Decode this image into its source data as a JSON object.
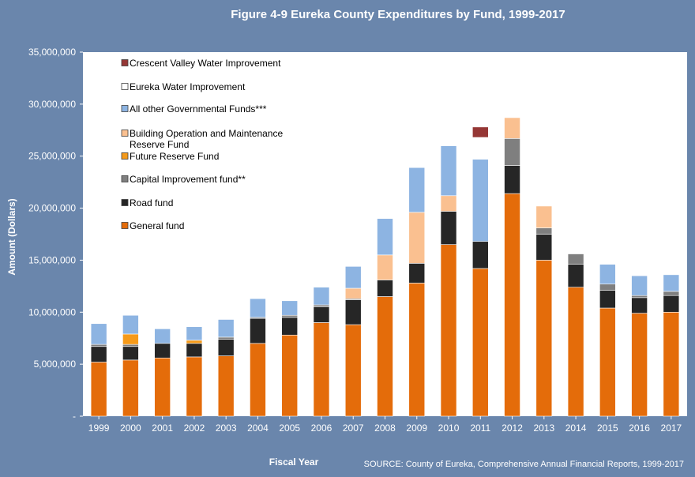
{
  "chart_data": {
    "type": "bar",
    "stacked": true,
    "title": "Figure 4-9 Eureka County Expenditures by Fund, 1999-2017",
    "xlabel": "Fiscal Year",
    "ylabel": "Amount (Dollars)",
    "source": "SOURCE: County of Eureka, Comprehensive Annual Financial Reports, 1999-2017",
    "ylim": [
      0,
      35000000
    ],
    "yticks": [
      "-",
      "5,000,000",
      "10,000,000",
      "15,000,000",
      "20,000,000",
      "25,000,000",
      "30,000,000",
      "35,000,000"
    ],
    "grid": false,
    "legend_position": "top-left",
    "categories": [
      "1999",
      "2000",
      "2001",
      "2002",
      "2003",
      "2004",
      "2005",
      "2006",
      "2007",
      "2008",
      "2009",
      "2010",
      "2011",
      "2012",
      "2013",
      "2014",
      "2015",
      "2016",
      "2017"
    ],
    "series": [
      {
        "name": "General fund",
        "color": "#e46c0a",
        "values": [
          5200000,
          5400000,
          5600000,
          5700000,
          5800000,
          7000000,
          7800000,
          9000000,
          8800000,
          11500000,
          12800000,
          16500000,
          14200000,
          21400000,
          15000000,
          12400000,
          10400000,
          9900000,
          10000000
        ]
      },
      {
        "name": "Road fund",
        "color": "#262626",
        "values": [
          1500000,
          1300000,
          1400000,
          1300000,
          1600000,
          2400000,
          1700000,
          1500000,
          2400000,
          1600000,
          1900000,
          3200000,
          2600000,
          2700000,
          2500000,
          2200000,
          1700000,
          1500000,
          1600000
        ]
      },
      {
        "name": "Capital Improvement fund**",
        "color": "#7f7f7f",
        "values": [
          200000,
          200000,
          0,
          0,
          200000,
          100000,
          200000,
          200000,
          100000,
          0,
          0,
          0,
          0,
          2600000,
          600000,
          1000000,
          600000,
          200000,
          400000
        ]
      },
      {
        "name": "Future Reserve Fund",
        "color": "#f59a1a",
        "values": [
          0,
          1000000,
          0,
          300000,
          0,
          0,
          0,
          0,
          0,
          0,
          0,
          0,
          0,
          0,
          0,
          0,
          0,
          0,
          0
        ]
      },
      {
        "name": "Building Operation and Maintenance Reserve Fund",
        "color": "#fac090",
        "values": [
          0,
          0,
          0,
          0,
          0,
          0,
          0,
          0,
          1000000,
          2400000,
          4900000,
          1500000,
          0,
          2000000,
          2100000,
          0,
          0,
          0,
          0
        ]
      },
      {
        "name": "All other Governmental Funds***",
        "color": "#8db4e2",
        "values": [
          2000000,
          1800000,
          1400000,
          1300000,
          1700000,
          1800000,
          1400000,
          1700000,
          2100000,
          3500000,
          4300000,
          4800000,
          7900000,
          0,
          0,
          0,
          1900000,
          1900000,
          1600000
        ]
      },
      {
        "name": "Eureka Water Improvement",
        "color": "#ffffff",
        "values": [
          0,
          0,
          0,
          0,
          0,
          0,
          0,
          0,
          0,
          0,
          700000,
          2700000,
          2100000,
          0,
          0,
          0,
          0,
          0,
          0
        ]
      },
      {
        "name": "Crescent Valley Water Improvement",
        "color": "#953735",
        "values": [
          0,
          0,
          0,
          0,
          0,
          0,
          0,
          0,
          0,
          0,
          0,
          0,
          1000000,
          0,
          0,
          0,
          0,
          0,
          0
        ]
      }
    ]
  }
}
